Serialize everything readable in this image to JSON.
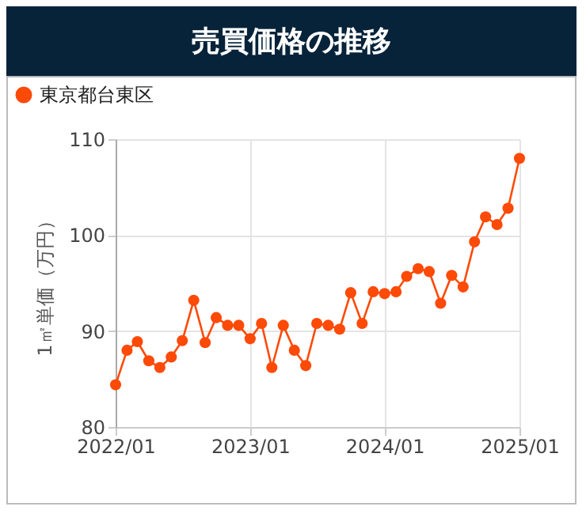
{
  "chart_data": {
    "type": "line",
    "title": "売買価格の推移",
    "ylabel": "1㎡単価（万円）",
    "x": [
      "2022-01",
      "2022-02",
      "2022-03",
      "2022-04",
      "2022-05",
      "2022-06",
      "2022-07",
      "2022-08",
      "2022-09",
      "2022-10",
      "2022-11",
      "2022-12",
      "2023-01",
      "2023-02",
      "2023-03",
      "2023-04",
      "2023-05",
      "2023-06",
      "2023-07",
      "2023-08",
      "2023-09",
      "2023-10",
      "2023-11",
      "2023-12",
      "2024-01",
      "2024-02",
      "2024-03",
      "2024-04",
      "2024-05",
      "2024-06",
      "2024-07",
      "2024-08",
      "2024-09",
      "2024-10",
      "2024-11",
      "2024-12",
      "2025-01"
    ],
    "series": [
      {
        "name": "東京都台東区",
        "color": "#fe4a07",
        "values": [
          84.4,
          88.0,
          88.9,
          86.9,
          86.2,
          87.3,
          89.0,
          93.2,
          88.8,
          91.4,
          90.6,
          90.6,
          89.2,
          90.8,
          86.2,
          90.6,
          88.0,
          86.4,
          90.8,
          90.6,
          90.2,
          94.0,
          90.8,
          94.1,
          93.9,
          94.1,
          95.7,
          96.5,
          96.2,
          92.9,
          95.8,
          94.6,
          99.3,
          101.9,
          101.1,
          102.8,
          108.0
        ]
      }
    ],
    "xlim": [
      "2022-01",
      "2025-01"
    ],
    "xticks": [
      {
        "value": "2022-01",
        "label": "2022/01"
      },
      {
        "value": "2023-01",
        "label": "2023/01"
      },
      {
        "value": "2024-01",
        "label": "2024/01"
      },
      {
        "value": "2025-01",
        "label": "2025/01"
      }
    ],
    "ylim": [
      80,
      110
    ],
    "yticks": [
      80,
      90,
      100,
      110
    ],
    "grid": true,
    "legend": "top left",
    "marker": "circle",
    "line_style": "solid"
  }
}
